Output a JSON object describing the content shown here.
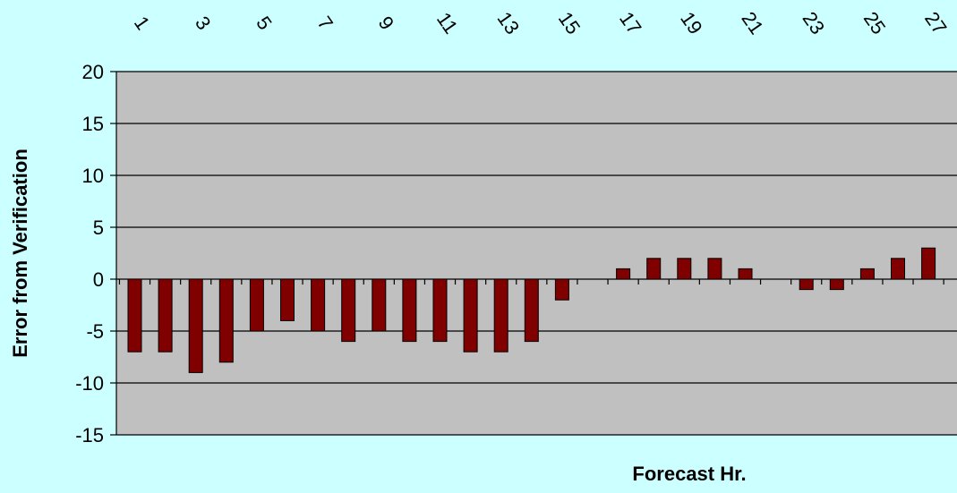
{
  "chart_data": {
    "type": "bar",
    "title": "",
    "xlabel": "Forecast Hr.",
    "ylabel": "Error from Verification",
    "x": [
      1,
      2,
      3,
      4,
      5,
      6,
      7,
      8,
      9,
      10,
      11,
      12,
      13,
      14,
      15,
      16,
      17,
      18,
      19,
      20,
      21,
      22,
      23,
      24,
      25,
      26,
      27
    ],
    "x_tick_labels": [
      "1",
      "3",
      "5",
      "7",
      "9",
      "11",
      "13",
      "15",
      "17",
      "19",
      "21",
      "23",
      "25",
      "27"
    ],
    "values": [
      -7,
      -7,
      -9,
      -8,
      -5,
      -4,
      -5,
      -6,
      -5,
      -6,
      -6,
      -7,
      -7,
      -6,
      -2,
      0,
      1,
      2,
      2,
      2,
      1,
      0,
      -1,
      -1,
      1,
      2,
      3
    ],
    "ylim": [
      -15,
      20
    ],
    "y_ticks": [
      -15,
      -10,
      -5,
      0,
      5,
      10,
      15,
      20
    ],
    "grid": true,
    "legend": "none",
    "colors": {
      "bar": "#800000",
      "plot_bg": "#c0c0c0",
      "page_bg": "#ccffff"
    }
  }
}
